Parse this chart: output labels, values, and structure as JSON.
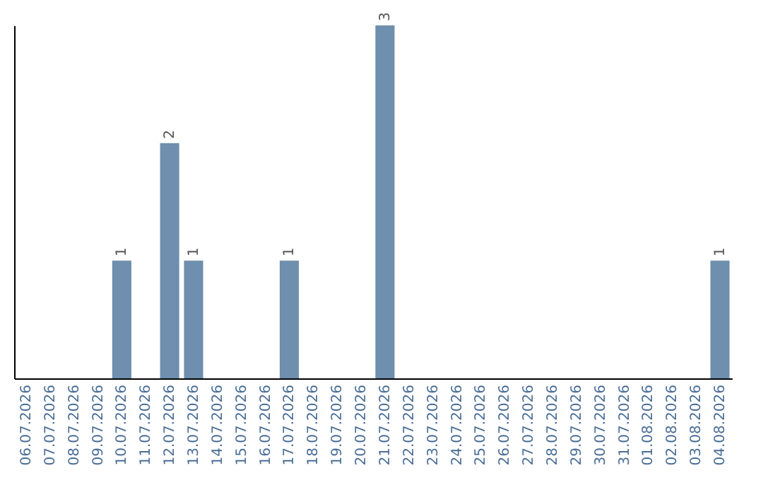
{
  "chart_data": {
    "type": "bar",
    "categories": [
      "06.07.2026",
      "07.07.2026",
      "08.07.2026",
      "09.07.2026",
      "10.07.2026",
      "11.07.2026",
      "12.07.2026",
      "13.07.2026",
      "14.07.2026",
      "15.07.2026",
      "16.07.2026",
      "17.07.2026",
      "18.07.2026",
      "19.07.2026",
      "20.07.2026",
      "21.07.2026",
      "22.07.2026",
      "23.07.2026",
      "24.07.2026",
      "25.07.2026",
      "26.07.2026",
      "27.07.2026",
      "28.07.2026",
      "29.07.2026",
      "30.07.2026",
      "31.07.2026",
      "01.08.2026",
      "02.08.2026",
      "03.08.2026",
      "04.08.2026"
    ],
    "values": [
      0,
      0,
      0,
      0,
      1,
      0,
      2,
      1,
      0,
      0,
      0,
      1,
      0,
      0,
      0,
      3,
      0,
      0,
      0,
      0,
      0,
      0,
      0,
      0,
      0,
      0,
      0,
      0,
      0,
      1
    ],
    "value_labels": [
      null,
      null,
      null,
      null,
      "1",
      null,
      "2",
      "1",
      null,
      null,
      null,
      "1",
      null,
      null,
      null,
      "3",
      null,
      null,
      null,
      null,
      null,
      null,
      null,
      null,
      null,
      null,
      null,
      null,
      null,
      "1"
    ],
    "color": "#6e8fad",
    "ylim": [
      0,
      3
    ],
    "tick_labels": "x",
    "grid": false
  }
}
